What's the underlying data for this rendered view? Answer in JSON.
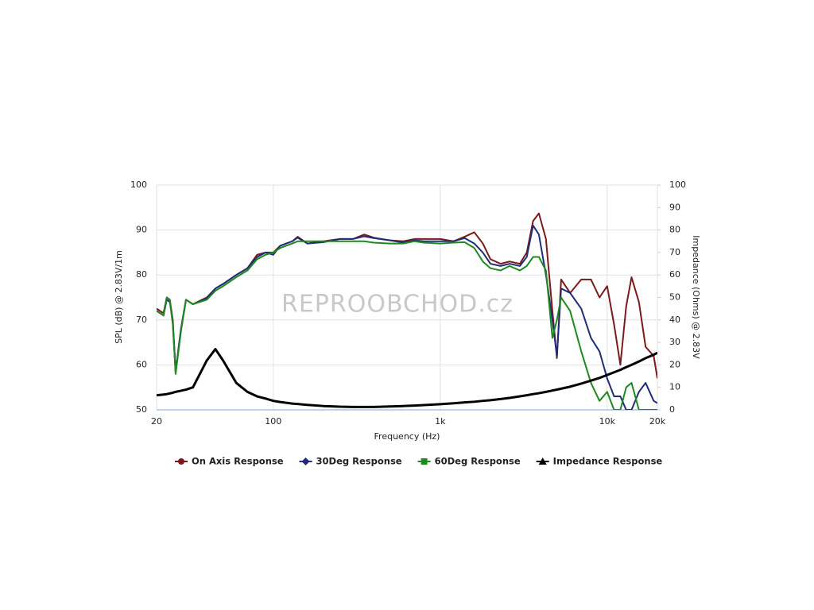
{
  "chart_data": {
    "type": "line",
    "watermark": "REPROOBCHOD.cz",
    "xlabel": "Frequency (Hz)",
    "ylabel": "SPL (dB) @ 2.83V/1m",
    "y2label": "Impedance (Ohms) @ 2.83V",
    "xlog": true,
    "grid": true,
    "legend": "bottom",
    "x": [
      20,
      22,
      23,
      24,
      25,
      26,
      28,
      30,
      33,
      40,
      45,
      50,
      60,
      70,
      80,
      90,
      100,
      110,
      130,
      140,
      160,
      200,
      250,
      300,
      350,
      400,
      500,
      600,
      700,
      800,
      1000,
      1200,
      1400,
      1600,
      1800,
      2000,
      2300,
      2600,
      3000,
      3300,
      3600,
      3900,
      4300,
      4700,
      5000,
      5300,
      6000,
      7000,
      8000,
      9000,
      10000,
      11000,
      12000,
      13000,
      14000,
      15500,
      17000,
      19000,
      20000
    ],
    "xlim": [
      20,
      20000
    ],
    "xticks": [
      20,
      100,
      {
        "value": 1000,
        "label": "1k"
      },
      {
        "value": 10000,
        "label": "10k"
      },
      {
        "value": 20000,
        "label": "20k"
      }
    ],
    "ylim": [
      50,
      100
    ],
    "yticks": [
      50,
      60,
      70,
      80,
      90,
      100
    ],
    "y2lim": [
      0,
      100
    ],
    "y2ticks": [
      0,
      10,
      20,
      30,
      40,
      50,
      60,
      70,
      80,
      90,
      100
    ],
    "series": [
      {
        "name": "On Axis Response",
        "color": "#7a1a1a",
        "marker": "circle",
        "values": [
          72.5,
          71.5,
          75,
          74.5,
          70,
          58.5,
          68,
          74.5,
          73.5,
          75,
          77,
          78,
          80,
          81.5,
          84.5,
          85,
          85,
          86.5,
          87.5,
          88.5,
          87,
          87.5,
          88,
          88,
          89,
          88.3,
          87.7,
          87.5,
          88,
          88,
          88,
          87.5,
          88.5,
          89.5,
          87,
          83.5,
          82.5,
          83,
          82.5,
          85,
          92,
          93.7,
          88,
          72,
          61.5,
          79,
          76,
          79,
          79,
          75,
          77.5,
          69,
          60,
          73,
          79.5,
          74,
          64,
          62,
          57
        ]
      },
      {
        "name": "30Deg Response",
        "color": "#1f2d7a",
        "marker": "diamond",
        "values": [
          72,
          71,
          74.5,
          74,
          69.5,
          58.5,
          68,
          74.5,
          73.5,
          74.8,
          77,
          78,
          80,
          81.5,
          84,
          85,
          84.5,
          86.5,
          87.5,
          88.3,
          87,
          87.3,
          88,
          88,
          88.6,
          88.2,
          87.7,
          87.2,
          87.7,
          87.5,
          87.5,
          87.5,
          88.2,
          87,
          85,
          82.5,
          82,
          82.5,
          82,
          84,
          91,
          89,
          80,
          70,
          62,
          77,
          76,
          72.5,
          66,
          63,
          57,
          53,
          53,
          50,
          50,
          54,
          56,
          52,
          51.5
        ]
      },
      {
        "name": "60Deg Response",
        "color": "#1e8a1e",
        "marker": "square",
        "values": [
          72,
          71,
          75,
          74.5,
          69,
          58,
          67.5,
          74.5,
          73.5,
          74.5,
          76.5,
          77.5,
          79.5,
          81,
          83.5,
          84.5,
          85,
          86,
          87,
          87.5,
          87.5,
          87.5,
          87.5,
          87.5,
          87.5,
          87.2,
          87,
          87,
          87.5,
          87.2,
          87,
          87.2,
          87.3,
          86,
          83,
          81.5,
          81,
          82,
          81,
          82,
          84,
          84,
          81,
          66,
          70,
          75,
          72,
          63,
          56,
          52,
          54,
          50,
          50,
          55,
          56,
          50,
          50,
          50,
          50
        ]
      },
      {
        "name": "Impedance Response",
        "color": "#000000",
        "marker": "triangle",
        "axis": "y2",
        "values": [
          6.5,
          6.8,
          7,
          7.3,
          7.6,
          8,
          8.5,
          9,
          10,
          22,
          27,
          22,
          12,
          8,
          6,
          5,
          4,
          3.5,
          2.8,
          2.6,
          2.2,
          1.7,
          1.4,
          1.3,
          1.3,
          1.3,
          1.5,
          1.7,
          1.9,
          2.1,
          2.5,
          2.9,
          3.3,
          3.6,
          4,
          4.3,
          4.8,
          5.3,
          6,
          6.5,
          7,
          7.4,
          8,
          8.6,
          9,
          9.4,
          10.3,
          11.7,
          13,
          14.2,
          15.5,
          16.7,
          17.8,
          19,
          20,
          21.5,
          23,
          24.5,
          25.4
        ]
      }
    ]
  }
}
